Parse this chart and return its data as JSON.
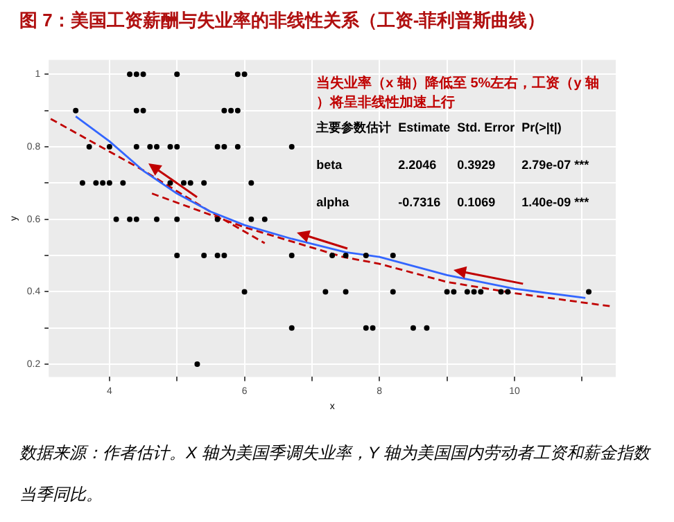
{
  "chart_data": {
    "type": "scatter",
    "title": "图 7：美国工资薪酬与失业率的非线性关系（工资-菲利普斯曲线）",
    "xlabel": "x",
    "ylabel": "y",
    "xlim": [
      3.1,
      11.5
    ],
    "ylim": [
      0.165,
      1.04
    ],
    "xticks": [
      4,
      {
        "value": 5,
        "label": null
      },
      6,
      {
        "value": 7,
        "label": null
      },
      8,
      {
        "value": 9,
        "label": null
      },
      10,
      {
        "value": 11,
        "label": null
      }
    ],
    "yticks": [
      0.2,
      {
        "value": 0.3,
        "label": null
      },
      0.4,
      {
        "value": 0.5,
        "label": null
      },
      0.6,
      {
        "value": 0.7,
        "label": null
      },
      0.8,
      {
        "value": 0.9,
        "label": null
      },
      1.0
    ],
    "grid": true,
    "legend": false,
    "series": [
      {
        "type": "scatter",
        "color": "#000000",
        "marker": "circle",
        "x": [
          4.3,
          4.4,
          4.5,
          5.0,
          5.9,
          6.0,
          3.5,
          4.4,
          4.5,
          5.7,
          5.8,
          5.9,
          3.7,
          4.0,
          4.4,
          4.6,
          4.7,
          4.9,
          5.0,
          5.6,
          5.7,
          5.9,
          6.7,
          3.6,
          3.8,
          3.9,
          4.0,
          4.2,
          4.9,
          5.1,
          5.2,
          5.4,
          6.1,
          4.1,
          4.3,
          4.4,
          4.7,
          5.0,
          5.6,
          6.1,
          6.3,
          5.0,
          5.4,
          5.6,
          5.7,
          6.7,
          7.3,
          7.5,
          7.8,
          8.2,
          6.0,
          7.2,
          7.5,
          8.2,
          9.0,
          9.1,
          9.3,
          9.4,
          9.5,
          9.8,
          9.9,
          11.1,
          6.7,
          7.8,
          7.9,
          8.5,
          8.7,
          5.3
        ],
        "values": [
          1.0,
          1.0,
          1.0,
          1.0,
          1.0,
          1.0,
          0.9,
          0.9,
          0.9,
          0.9,
          0.9,
          0.9,
          0.8,
          0.8,
          0.8,
          0.8,
          0.8,
          0.8,
          0.8,
          0.8,
          0.8,
          0.8,
          0.8,
          0.7,
          0.7,
          0.7,
          0.7,
          0.7,
          0.7,
          0.7,
          0.7,
          0.7,
          0.7,
          0.6,
          0.6,
          0.6,
          0.6,
          0.6,
          0.6,
          0.6,
          0.6,
          0.5,
          0.5,
          0.5,
          0.5,
          0.5,
          0.5,
          0.5,
          0.5,
          0.5,
          0.4,
          0.4,
          0.4,
          0.4,
          0.4,
          0.4,
          0.4,
          0.4,
          0.4,
          0.4,
          0.4,
          0.4,
          0.3,
          0.3,
          0.3,
          0.3,
          0.3,
          0.2
        ]
      },
      {
        "type": "line",
        "color": "#3366ff",
        "marker": "none",
        "line_style": "solid",
        "x": [
          3.5,
          4.0,
          4.5,
          5.0,
          5.5,
          6.0,
          6.7,
          7.5,
          8.0,
          9.0,
          10.0,
          11.05
        ],
        "values": [
          0.884,
          0.815,
          0.734,
          0.671,
          0.621,
          0.584,
          0.546,
          0.509,
          0.496,
          0.446,
          0.408,
          0.383
        ]
      },
      {
        "type": "line",
        "color": "#c00000",
        "marker": "none",
        "line_style": "dashed",
        "x": [
          3.13,
          4.5,
          5.5,
          6.3
        ],
        "values": [
          0.877,
          0.735,
          0.62,
          0.534
        ]
      },
      {
        "type": "line",
        "color": "#c00000",
        "marker": "none",
        "line_style": "dashed",
        "x": [
          4.63,
          6.0,
          7.46,
          8.0,
          9.0,
          10.0,
          11.46
        ],
        "values": [
          0.671,
          0.578,
          0.496,
          0.477,
          0.427,
          0.396,
          0.359
        ]
      }
    ],
    "annotations": [
      "当失业率（x 轴）降低至 5%左右，工资（y 轴）将呈非线性加速上行",
      "主要参数估计  Estimate  Std. Error  Pr(>|t|)",
      "beta  2.2046  0.3929  2.79e-07 ***",
      "alpha  -0.7316  0.1069  1.40e-09 ***",
      "数据来源：作者估计。X 轴为美国季调失业率，Y 轴为美国国内劳动者工资和薪金指数当季同比。"
    ]
  }
}
